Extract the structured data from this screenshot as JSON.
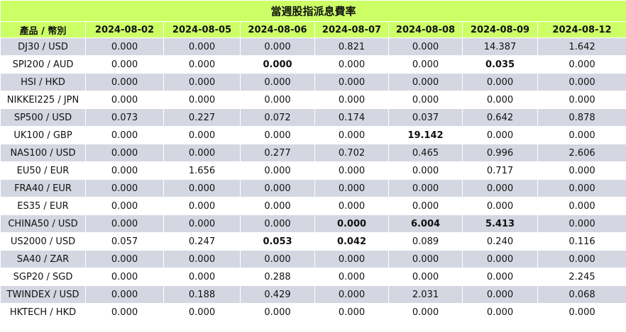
{
  "title": "當週股指派息費率",
  "product_header": "產品 / 幣別",
  "dates": [
    "2024-08-02",
    "2024-08-05",
    "2024-08-06",
    "2024-08-07",
    "2024-08-08",
    "2024-08-09",
    "2024-08-12"
  ],
  "rows": [
    {
      "product": "DJ30 / USD",
      "values": [
        "0.000",
        "0.000",
        "0.000",
        "0.821",
        "0.000",
        "14.387",
        "1.642"
      ],
      "bold": [
        false,
        false,
        false,
        false,
        false,
        false,
        false
      ]
    },
    {
      "product": "SPI200 / AUD",
      "values": [
        "0.000",
        "0.000",
        "0.000",
        "0.000",
        "0.000",
        "0.035",
        "0.000"
      ],
      "bold": [
        false,
        false,
        true,
        false,
        false,
        true,
        false
      ]
    },
    {
      "product": "HSI / HKD",
      "values": [
        "0.000",
        "0.000",
        "0.000",
        "0.000",
        "0.000",
        "0.000",
        "0.000"
      ],
      "bold": [
        false,
        false,
        false,
        false,
        false,
        false,
        false
      ]
    },
    {
      "product": "NIKKEI225 / JPN",
      "values": [
        "0.000",
        "0.000",
        "0.000",
        "0.000",
        "0.000",
        "0.000",
        "0.000"
      ],
      "bold": [
        false,
        false,
        false,
        false,
        false,
        false,
        false
      ]
    },
    {
      "product": "SP500 / USD",
      "values": [
        "0.073",
        "0.227",
        "0.072",
        "0.174",
        "0.037",
        "0.642",
        "0.878"
      ],
      "bold": [
        false,
        false,
        false,
        false,
        false,
        false,
        false
      ]
    },
    {
      "product": "UK100 / GBP",
      "values": [
        "0.000",
        "0.000",
        "0.000",
        "0.000",
        "19.142",
        "0.000",
        "0.000"
      ],
      "bold": [
        false,
        false,
        false,
        false,
        true,
        false,
        false
      ]
    },
    {
      "product": "NAS100 / USD",
      "values": [
        "0.000",
        "0.000",
        "0.277",
        "0.702",
        "0.465",
        "0.996",
        "2.606"
      ],
      "bold": [
        false,
        false,
        false,
        false,
        false,
        false,
        false
      ]
    },
    {
      "product": "EU50 / EUR",
      "values": [
        "0.000",
        "1.656",
        "0.000",
        "0.000",
        "0.000",
        "0.717",
        "0.000"
      ],
      "bold": [
        false,
        false,
        false,
        false,
        false,
        false,
        false
      ]
    },
    {
      "product": "FRA40 / EUR",
      "values": [
        "0.000",
        "0.000",
        "0.000",
        "0.000",
        "0.000",
        "0.000",
        "0.000"
      ],
      "bold": [
        false,
        false,
        false,
        false,
        false,
        false,
        false
      ]
    },
    {
      "product": "ES35 / EUR",
      "values": [
        "0.000",
        "0.000",
        "0.000",
        "0.000",
        "0.000",
        "0.000",
        "0.000"
      ],
      "bold": [
        false,
        false,
        false,
        false,
        false,
        false,
        false
      ]
    },
    {
      "product": "CHINA50 / USD",
      "values": [
        "0.000",
        "0.000",
        "0.000",
        "0.000",
        "6.004",
        "5.413",
        "0.000"
      ],
      "bold": [
        false,
        false,
        false,
        true,
        true,
        true,
        false
      ]
    },
    {
      "product": "US2000 / USD",
      "values": [
        "0.057",
        "0.247",
        "0.053",
        "0.042",
        "0.089",
        "0.240",
        "0.116"
      ],
      "bold": [
        false,
        false,
        true,
        true,
        false,
        false,
        false
      ]
    },
    {
      "product": "SA40 / ZAR",
      "values": [
        "0.000",
        "0.000",
        "0.000",
        "0.000",
        "0.000",
        "0.000",
        "0.000"
      ],
      "bold": [
        false,
        false,
        false,
        false,
        false,
        false,
        false
      ]
    },
    {
      "product": "SGP20 / SGD",
      "values": [
        "0.000",
        "0.000",
        "0.288",
        "0.000",
        "0.000",
        "0.000",
        "2.245"
      ],
      "bold": [
        false,
        false,
        false,
        false,
        false,
        false,
        false
      ]
    },
    {
      "product": "TWINDEX / USD",
      "values": [
        "0.000",
        "0.188",
        "0.429",
        "0.000",
        "2.031",
        "0.000",
        "0.068"
      ],
      "bold": [
        false,
        false,
        false,
        false,
        false,
        false,
        false
      ]
    },
    {
      "product": "HKTECH / HKD",
      "values": [
        "0.000",
        "0.000",
        "0.000",
        "0.000",
        "0.000",
        "0.000",
        "0.000"
      ],
      "bold": [
        false,
        false,
        false,
        false,
        false,
        false,
        false
      ]
    }
  ],
  "colors": {
    "header_bg": "#ccff66",
    "row_odd_bg": "#d4d7e1",
    "row_even_bg": "#ffffff"
  }
}
